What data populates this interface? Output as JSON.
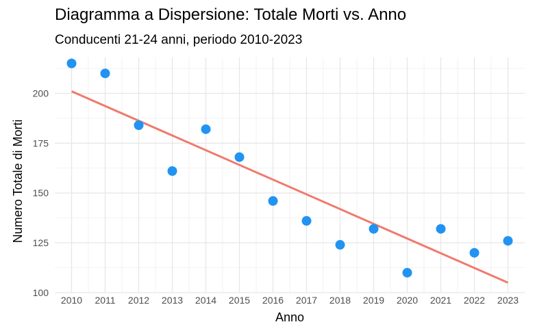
{
  "chart_data": {
    "type": "scatter",
    "title": "Diagramma a Dispersione: Totale Morti vs. Anno",
    "subtitle": "Conducenti 21-24 anni, periodo 2010-2023",
    "xlabel": "Anno",
    "ylabel": "Numero Totale di Morti",
    "x": [
      2010,
      2011,
      2012,
      2013,
      2014,
      2015,
      2016,
      2017,
      2018,
      2019,
      2020,
      2021,
      2022,
      2023
    ],
    "y": [
      215,
      210,
      184,
      161,
      182,
      168,
      146,
      136,
      124,
      132,
      110,
      132,
      120,
      126
    ],
    "trend_line": {
      "x": [
        2010,
        2023
      ],
      "y": [
        201,
        105
      ]
    },
    "x_ticks": [
      "2010",
      "2011",
      "2012",
      "2013",
      "2014",
      "2015",
      "2016",
      "2017",
      "2018",
      "2019",
      "2020",
      "2021",
      "2022",
      "2023"
    ],
    "y_ticks": [
      100,
      125,
      150,
      175,
      200
    ],
    "xlim": [
      2009.5,
      2023.5
    ],
    "ylim": [
      100,
      218
    ],
    "grid": true,
    "point_color": "#2193f2",
    "line_color": "#f07a6e"
  }
}
